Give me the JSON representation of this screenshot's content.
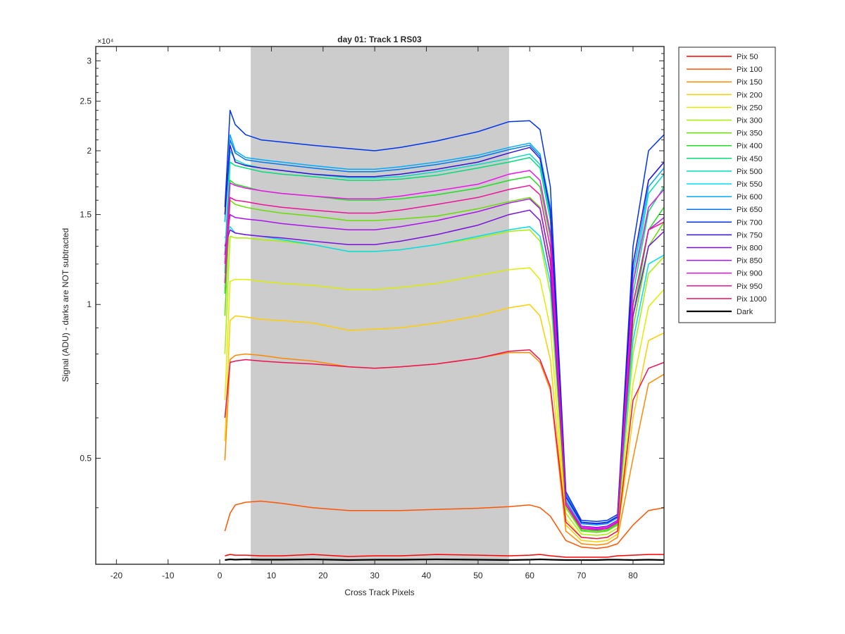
{
  "chart_data": {
    "type": "line",
    "title": "day 01: Track 1  RS03",
    "xlabel": "Cross Track Pixels",
    "ylabel": "Signal (ADU) - darks are NOT subtracted",
    "y_multiplier_label": "×10⁴",
    "y_scale": "log",
    "xlim": [
      -24,
      86
    ],
    "ylim": [
      3100,
      32000
    ],
    "x_ticks": [
      -20,
      -10,
      0,
      10,
      20,
      30,
      40,
      50,
      60,
      70,
      80
    ],
    "x_tick_labels": [
      "-20",
      "-10",
      "0",
      "10",
      "20",
      "30",
      "40",
      "50",
      "60",
      "70",
      "80"
    ],
    "y_ticks": [
      5000,
      10000,
      15000,
      20000,
      25000,
      30000
    ],
    "y_tick_labels": [
      "0.5",
      "1",
      "1.5",
      "2",
      "2.5",
      "3"
    ],
    "shaded_region": {
      "x_start": 6,
      "x_end": 56,
      "color": "#cccccc"
    },
    "legend_position": "outside-top-right",
    "x_values": [
      1,
      2,
      3,
      5,
      8,
      12,
      18,
      25,
      30,
      35,
      42,
      50,
      56,
      60,
      62,
      64,
      67,
      70,
      73,
      75,
      77,
      80,
      83,
      86
    ],
    "series": [
      {
        "name": "Pix 50",
        "color": "#ff0000",
        "values": [
          3220,
          3240,
          3230,
          3230,
          3220,
          3220,
          3240,
          3210,
          3220,
          3220,
          3240,
          3230,
          3220,
          3230,
          3240,
          3220,
          3200,
          3200,
          3200,
          3200,
          3220,
          3230,
          3240,
          3240
        ]
      },
      {
        "name": "Pix 100",
        "color": "#ff5500",
        "values": [
          3600,
          3900,
          4050,
          4100,
          4120,
          4080,
          4000,
          3950,
          3950,
          3950,
          3970,
          3990,
          4020,
          4050,
          4000,
          3850,
          3450,
          3350,
          3330,
          3350,
          3400,
          3700,
          3950,
          4000
        ]
      },
      {
        "name": "Pix 150",
        "color": "#ff8800",
        "values": [
          4950,
          7800,
          7950,
          8000,
          7950,
          7850,
          7750,
          7550,
          7500,
          7550,
          7650,
          7850,
          8050,
          8050,
          7700,
          6800,
          3600,
          3400,
          3380,
          3400,
          3500,
          5000,
          7000,
          7300
        ]
      },
      {
        "name": "Pix 200",
        "color": "#ffcc00",
        "values": [
          5400,
          9300,
          9500,
          9450,
          9350,
          9300,
          9200,
          8900,
          8950,
          9000,
          9200,
          9500,
          9850,
          10000,
          9500,
          7800,
          3700,
          3450,
          3430,
          3450,
          3550,
          6000,
          8500,
          8800
        ]
      },
      {
        "name": "Pix 250",
        "color": "#ddee00",
        "values": [
          6500,
          11100,
          11200,
          11200,
          11100,
          11000,
          10900,
          10700,
          10700,
          10800,
          11000,
          11400,
          11700,
          11800,
          11200,
          9000,
          3800,
          3500,
          3480,
          3500,
          3600,
          7000,
          9900,
          10700
        ]
      },
      {
        "name": "Pix 300",
        "color": "#aaee00",
        "values": [
          8000,
          13600,
          13500,
          13500,
          13400,
          13300,
          13100,
          12700,
          12700,
          12800,
          13100,
          13500,
          13900,
          14000,
          13300,
          10500,
          3900,
          3550,
          3530,
          3550,
          3650,
          8000,
          11500,
          12400
        ]
      },
      {
        "name": "Pix 350",
        "color": "#66dd00",
        "values": [
          9500,
          16000,
          15700,
          15500,
          15300,
          15100,
          14900,
          14600,
          14600,
          14700,
          14900,
          15400,
          15900,
          16200,
          15500,
          12200,
          4000,
          3600,
          3580,
          3600,
          3700,
          9000,
          13000,
          14500
        ]
      },
      {
        "name": "Pix 400",
        "color": "#22dd22",
        "values": [
          10500,
          17500,
          17200,
          17000,
          16700,
          16500,
          16300,
          16000,
          16000,
          16100,
          16400,
          16900,
          17500,
          17800,
          17000,
          13500,
          4050,
          3620,
          3600,
          3620,
          3720,
          9500,
          14000,
          15500
        ]
      },
      {
        "name": "Pix 450",
        "color": "#00dd77",
        "values": [
          11500,
          19000,
          18700,
          18500,
          18200,
          18000,
          17800,
          17500,
          17500,
          17600,
          17900,
          18500,
          19000,
          19400,
          18500,
          14600,
          4100,
          3650,
          3620,
          3650,
          3750,
          10500,
          15200,
          17000
        ]
      },
      {
        "name": "Pix 500",
        "color": "#00ddbb",
        "values": [
          12500,
          20000,
          19200,
          18800,
          18500,
          18300,
          18000,
          17700,
          17700,
          17800,
          18200,
          18800,
          19300,
          19700,
          18800,
          14800,
          4150,
          3680,
          3650,
          3680,
          3780,
          11000,
          16500,
          18000
        ]
      },
      {
        "name": "Pix 550",
        "color": "#00ddee",
        "values": [
          13500,
          14200,
          13800,
          13700,
          13600,
          13400,
          13100,
          12700,
          12700,
          12800,
          13100,
          13600,
          14000,
          14200,
          13600,
          11000,
          4100,
          3680,
          3650,
          3680,
          3780,
          8500,
          12000,
          12500
        ]
      },
      {
        "name": "Pix 600",
        "color": "#00aaff",
        "values": [
          14500,
          21500,
          20000,
          19400,
          19200,
          19000,
          18700,
          18400,
          18400,
          18600,
          19000,
          19600,
          20300,
          20700,
          19700,
          15500,
          4200,
          3720,
          3700,
          3720,
          3820,
          11500,
          17000,
          18500
        ]
      },
      {
        "name": "Pix 650",
        "color": "#0077ee",
        "values": [
          15000,
          21000,
          19800,
          19200,
          19000,
          18800,
          18500,
          18200,
          18200,
          18400,
          18800,
          19400,
          20100,
          20500,
          19500,
          15300,
          4250,
          3750,
          3730,
          3750,
          3850,
          12000,
          17500,
          19000
        ]
      },
      {
        "name": "Pix 700",
        "color": "#0033ee",
        "values": [
          15500,
          24000,
          22500,
          21500,
          21000,
          20800,
          20500,
          20200,
          20000,
          20300,
          20900,
          21800,
          22800,
          22900,
          22000,
          17000,
          4300,
          3780,
          3760,
          3780,
          3880,
          13000,
          20000,
          21500
        ]
      },
      {
        "name": "Pix 750",
        "color": "#3311dd",
        "values": [
          15000,
          20500,
          19000,
          18700,
          18500,
          18300,
          18000,
          17800,
          17800,
          18000,
          18400,
          19000,
          19800,
          20300,
          19300,
          15200,
          4200,
          3740,
          3720,
          3740,
          3840,
          12000,
          17500,
          19000
        ]
      },
      {
        "name": "Pix 800",
        "color": "#7711dd",
        "values": [
          13000,
          14000,
          13800,
          13700,
          13600,
          13500,
          13300,
          13100,
          13100,
          13300,
          13700,
          14300,
          15000,
          15300,
          14600,
          11500,
          4100,
          3680,
          3660,
          3680,
          3780,
          9500,
          13000,
          13900
        ]
      },
      {
        "name": "Pix 850",
        "color": "#aa11ee",
        "values": [
          12500,
          15000,
          14800,
          14700,
          14600,
          14400,
          14200,
          14000,
          14000,
          14200,
          14600,
          15200,
          15800,
          16100,
          15400,
          12100,
          4050,
          3650,
          3630,
          3650,
          3750,
          10000,
          14000,
          14800
        ]
      },
      {
        "name": "Pix 900",
        "color": "#ee11ee",
        "values": [
          12000,
          17300,
          17100,
          16900,
          16700,
          16500,
          16300,
          16100,
          16100,
          16300,
          16700,
          17200,
          18000,
          18300,
          17500,
          13800,
          4100,
          3670,
          3650,
          3670,
          3770,
          11000,
          15500,
          16800
        ]
      },
      {
        "name": "Pix 950",
        "color": "#ee1199",
        "values": [
          11000,
          16200,
          16000,
          15900,
          15700,
          15500,
          15300,
          15100,
          15100,
          15300,
          15700,
          16200,
          16800,
          17100,
          16400,
          12900,
          4050,
          3640,
          3620,
          3640,
          3740,
          10000,
          14000,
          14500
        ]
      },
      {
        "name": "Pix 1000",
        "color": "#ee1155",
        "values": [
          6000,
          7700,
          7750,
          7800,
          7750,
          7700,
          7650,
          7550,
          7500,
          7550,
          7650,
          7850,
          8100,
          8150,
          7800,
          6900,
          3750,
          3500,
          3480,
          3500,
          3600,
          6500,
          7500,
          7700
        ]
      },
      {
        "name": "Dark",
        "color": "#000000",
        "values": [
          3160,
          3170,
          3165,
          3170,
          3165,
          3165,
          3170,
          3160,
          3165,
          3165,
          3170,
          3165,
          3160,
          3165,
          3170,
          3165,
          3160,
          3160,
          3160,
          3165,
          3165,
          3160,
          3165,
          3160
        ]
      }
    ]
  }
}
